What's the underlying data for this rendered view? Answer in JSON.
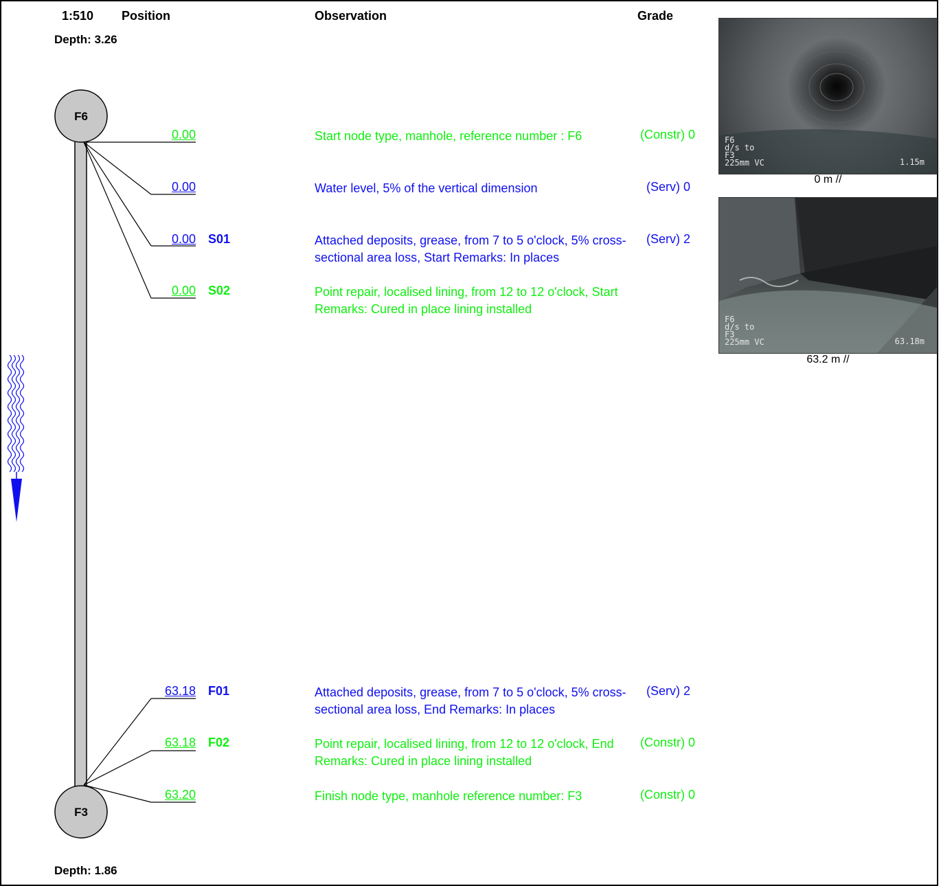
{
  "header": {
    "scale": "1:510",
    "position_label": "Position",
    "observation_label": "Observation",
    "grade_label": "Grade"
  },
  "depth_top": "Depth: 3.26",
  "depth_bottom": "Depth: 1.86",
  "nodes": {
    "start": "F6",
    "finish": "F3"
  },
  "observations": [
    {
      "position": "0.00",
      "code": "",
      "text": "Start node type, manhole, reference number : F6",
      "grade": "(Constr) 0",
      "color": "#11ee11"
    },
    {
      "position": "0.00",
      "code": "",
      "text": "Water level, 5% of the vertical dimension",
      "grade": "(Serv) 0",
      "color": "#1010ee"
    },
    {
      "position": "0.00",
      "code": "S01",
      "text": "Attached deposits, grease, from 7 to 5 o'clock, 5% cross-sectional area loss, Start Remarks: In places",
      "grade": "(Serv) 2",
      "color": "#1010ee"
    },
    {
      "position": "0.00",
      "code": "S02",
      "text": "Point repair, localised lining, from 12 to 12 o'clock, Start Remarks: Cured in place lining installed",
      "grade": "",
      "color": "#11ee11"
    },
    {
      "position": "63.18",
      "code": "F01",
      "text": "Attached deposits, grease, from 7 to 5 o'clock, 5% cross-sectional area loss, End Remarks: In places",
      "grade": "(Serv) 2",
      "color": "#1010ee"
    },
    {
      "position": "63.18",
      "code": "F02",
      "text": "Point repair, localised lining, from 12 to 12 o'clock, End Remarks: Cured in place lining installed",
      "grade": "(Constr) 0",
      "color": "#11ee11"
    },
    {
      "position": "63.20",
      "code": "",
      "text": "Finish node type, manhole reference number: F3",
      "grade": "(Constr) 0",
      "color": "#11ee11"
    }
  ],
  "photos": [
    {
      "overlay": "F6\nd/s to\nF3\n225mm VC",
      "distance": "1.15m",
      "caption": "0 m //"
    },
    {
      "overlay": "F6\nd/s to\nF3\n225mm VC",
      "distance": "63.18m",
      "caption": "63.2 m //"
    }
  ]
}
